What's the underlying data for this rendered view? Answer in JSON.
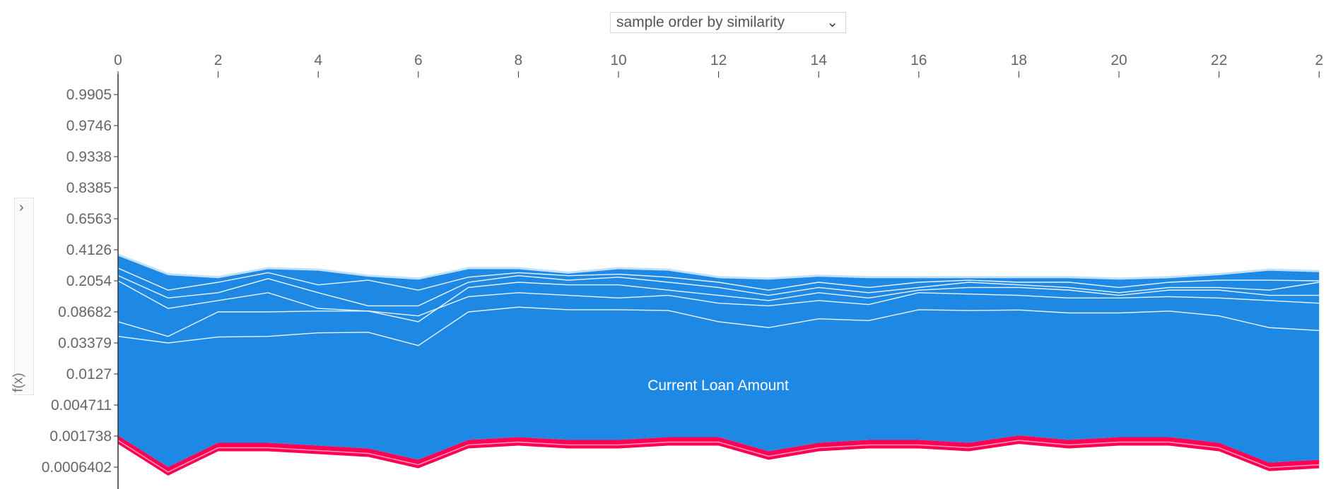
{
  "controls": {
    "order_select_label": "sample order by similarity",
    "side_toggle_glyph": "›",
    "side_axis_label": "f(x)"
  },
  "chart_data": {
    "type": "area",
    "x_ticks": [
      "0",
      "2",
      "4",
      "6",
      "8",
      "10",
      "12",
      "14",
      "16",
      "18",
      "20",
      "22",
      "2"
    ],
    "y_ticks": [
      "0.9905",
      "0.9746",
      "0.9338",
      "0.8385",
      "0.6563",
      "0.4126",
      "0.2054",
      "0.08682",
      "0.03379",
      "0.0127",
      "0.004711",
      "0.001738",
      "0.0006402"
    ],
    "xlim": [
      0,
      24
    ],
    "feature_label": "Current Loan Amount",
    "colors": {
      "positive": "#ff0052",
      "positive_light": "#ff9ab4",
      "negative": "#1e88e5",
      "negative_light": "#bfe0ff",
      "axis": "#333333",
      "tick_text": "#666666"
    },
    "boundary_y": [
      0.0018,
      0.0006402,
      0.0015,
      0.0015,
      0.0014,
      0.0013,
      0.0009,
      0.0016,
      0.0017,
      0.0016,
      0.0016,
      0.0017,
      0.0017,
      0.0012,
      0.0015,
      0.0016,
      0.0016,
      0.0015,
      0.0018,
      0.0016,
      0.0017,
      0.0017,
      0.0015,
      0.0008,
      0.0009
    ],
    "neg_top_y": [
      0.38,
      0.25,
      0.23,
      0.29,
      0.28,
      0.24,
      0.22,
      0.29,
      0.29,
      0.26,
      0.29,
      0.28,
      0.23,
      0.22,
      0.24,
      0.23,
      0.23,
      0.23,
      0.23,
      0.23,
      0.22,
      0.23,
      0.25,
      0.28,
      0.27
    ],
    "neg_lines_y": [
      [
        0.045,
        0.03379,
        0.044,
        0.045,
        0.051,
        0.052,
        0.032,
        0.08682,
        0.105,
        0.095,
        0.095,
        0.092,
        0.07,
        0.06,
        0.075,
        0.072,
        0.095,
        0.092,
        0.094,
        0.085,
        0.085,
        0.09,
        0.08,
        0.06,
        0.055
      ],
      [
        0.07,
        0.045,
        0.08682,
        0.08682,
        0.09,
        0.09,
        0.08,
        0.145,
        0.16,
        0.15,
        0.14,
        0.15,
        0.12,
        0.11,
        0.13,
        0.115,
        0.16,
        0.155,
        0.15,
        0.14,
        0.14,
        0.145,
        0.14,
        0.13,
        0.12
      ],
      [
        0.2054,
        0.1,
        0.13,
        0.16,
        0.1,
        0.09,
        0.07,
        0.18,
        0.2,
        0.19,
        0.19,
        0.17,
        0.15,
        0.13,
        0.16,
        0.14,
        0.17,
        0.18,
        0.18,
        0.17,
        0.15,
        0.17,
        0.17,
        0.15,
        0.15
      ],
      [
        0.24,
        0.14,
        0.16,
        0.22,
        0.16,
        0.11,
        0.11,
        0.2,
        0.24,
        0.21,
        0.23,
        0.2,
        0.18,
        0.15,
        0.18,
        0.16,
        0.18,
        0.2,
        0.19,
        0.18,
        0.16,
        0.18,
        0.18,
        0.17,
        0.2
      ],
      [
        0.29,
        0.17,
        0.2,
        0.26,
        0.19,
        0.21,
        0.17,
        0.23,
        0.26,
        0.24,
        0.25,
        0.23,
        0.2,
        0.17,
        0.2,
        0.18,
        0.2,
        0.21,
        0.2,
        0.2,
        0.18,
        0.2,
        0.21,
        0.21,
        0.2054
      ]
    ]
  }
}
